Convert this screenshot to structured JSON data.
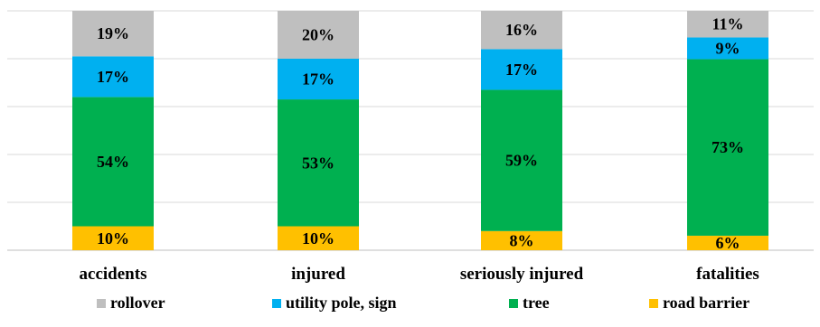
{
  "chart_data": {
    "type": "bar",
    "stacked": true,
    "normalized_100": true,
    "categories": [
      "accidents",
      "injured",
      "seriously injured",
      "fatalities"
    ],
    "series": [
      {
        "name": "road barrier",
        "color": "#ffc000",
        "values": [
          10,
          10,
          8,
          6
        ],
        "labels": [
          "10%",
          "10%",
          "8%",
          "6%"
        ]
      },
      {
        "name": "tree",
        "color": "#00b050",
        "values": [
          54,
          53,
          59,
          73
        ],
        "labels": [
          "54%",
          "53%",
          "59%",
          "73%"
        ]
      },
      {
        "name": "utility pole, sign",
        "color": "#00b0f0",
        "values": [
          17,
          17,
          17,
          9
        ],
        "labels": [
          "17%",
          "17%",
          "17%",
          "9%"
        ]
      },
      {
        "name": "rollover",
        "color": "#bfbfbf",
        "values": [
          19,
          20,
          16,
          11
        ],
        "labels": [
          "19%",
          "20%",
          "16%",
          "11%"
        ]
      }
    ],
    "legend_order": [
      "rollover",
      "utility pole, sign",
      "tree",
      "road barrier"
    ],
    "legend_position": "bottom",
    "grid": true,
    "ylim": [
      0,
      100
    ],
    "title": "",
    "xlabel": "",
    "ylabel": ""
  }
}
